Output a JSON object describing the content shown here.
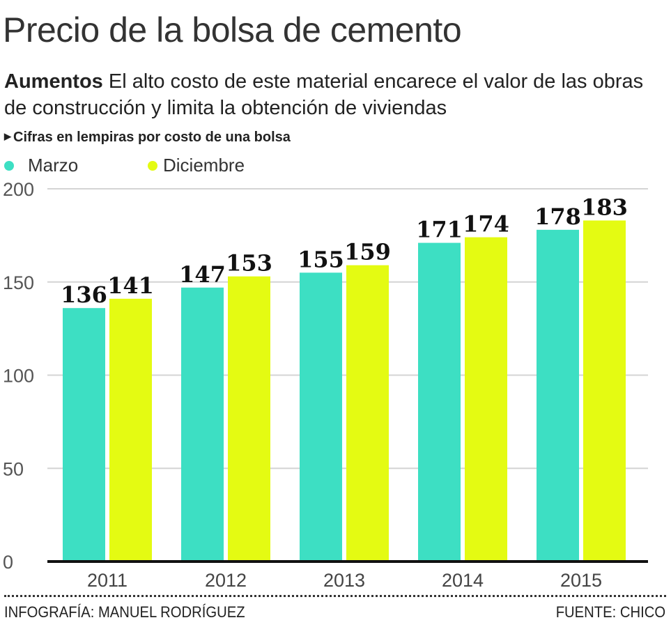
{
  "header": {
    "title": "Precio de la bolsa de cemento",
    "subtitle_lead": "Aumentos",
    "subtitle_text": " El alto costo de este material encarece el valor de las obras de construcción y limita la obtención de viviendas",
    "note": "Cifras en lempiras por costo de una bolsa"
  },
  "chart_data": {
    "type": "bar",
    "title": "Precio de la bolsa de cemento",
    "categories": [
      "2011",
      "2012",
      "2013",
      "2014",
      "2015"
    ],
    "series": [
      {
        "name": "Marzo",
        "color": "#3ddfc3",
        "values": [
          136,
          147,
          155,
          171,
          178
        ]
      },
      {
        "name": "Diciembre",
        "color": "#e4fb12",
        "values": [
          141,
          153,
          159,
          174,
          183
        ]
      }
    ],
    "ylim": [
      0,
      200
    ],
    "yticks": [
      0,
      50,
      100,
      150,
      200
    ],
    "grid": true,
    "legend": "top-left",
    "data_labels": true
  },
  "footer": {
    "credit": "INFOGRAFÍA: MANUEL RODRÍGUEZ",
    "source": "FUENTE: CHICO"
  }
}
